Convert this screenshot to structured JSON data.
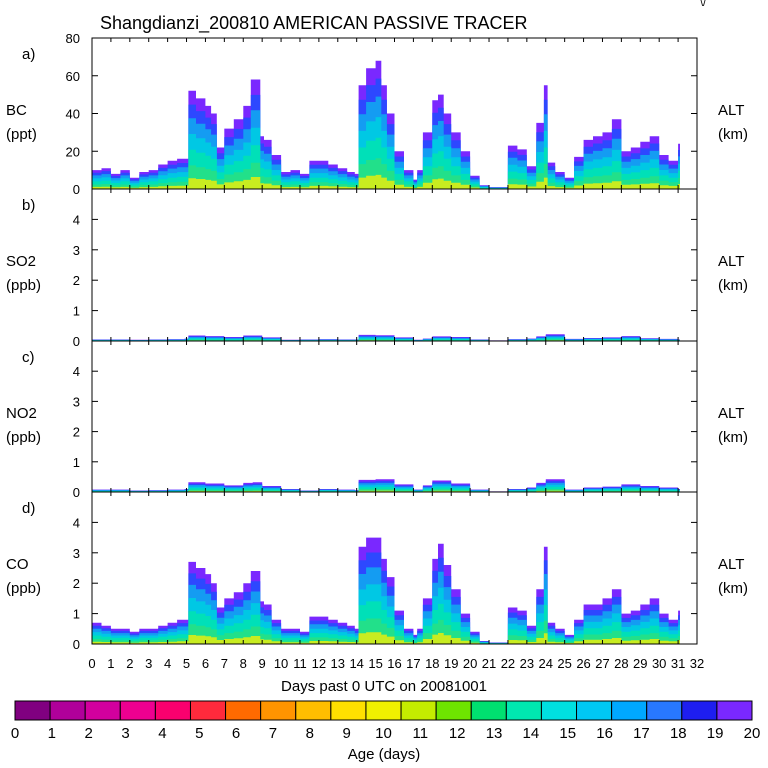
{
  "title": "Shangdianzi_200810 AMERICAN PASSIVE TRACER",
  "corner_mark": "\\/",
  "x_axis": {
    "label": "Days past 0 UTC on 20081001",
    "range": [
      0,
      32
    ],
    "ticks": [
      "0",
      "1",
      "2",
      "3",
      "4",
      "5",
      "6",
      "7",
      "8",
      "9",
      "10",
      "11",
      "12",
      "13",
      "14",
      "15",
      "16",
      "17",
      "18",
      "19",
      "20",
      "21",
      "22",
      "23",
      "24",
      "25",
      "26",
      "27",
      "28",
      "29",
      "30",
      "31",
      "32"
    ]
  },
  "right_axis": {
    "label": "ALT",
    "unit": "(km)"
  },
  "colorbar": {
    "label": "Age (days)",
    "ticks": [
      "0",
      "1",
      "2",
      "3",
      "4",
      "5",
      "6",
      "7",
      "8",
      "9",
      "10",
      "11",
      "12",
      "13",
      "14",
      "15",
      "16",
      "17",
      "18",
      "19",
      "20"
    ],
    "colors": [
      "#800080",
      "#b0009a",
      "#d2009e",
      "#ee0090",
      "#fa006e",
      "#ff2a3c",
      "#ff6a00",
      "#ff9400",
      "#ffbe00",
      "#ffe000",
      "#f0f000",
      "#c4ec00",
      "#6ee400",
      "#00e070",
      "#00e8b0",
      "#00e0e0",
      "#00c8f4",
      "#00a8ff",
      "#2878ff",
      "#1e1ef0",
      "#7a28ff"
    ]
  },
  "chart_data": [
    {
      "type": "area",
      "panel": "a)",
      "species": "BC",
      "unit": "(ppt)",
      "ylim": [
        0,
        80
      ],
      "yticks": [
        "0",
        "20",
        "40",
        "60",
        "80"
      ],
      "x": [
        0,
        0.5,
        1,
        1.5,
        2,
        2.5,
        3,
        3.5,
        4,
        4.5,
        4.9,
        5.1,
        5.5,
        6,
        6.3,
        6.6,
        7,
        7.5,
        8,
        8.4,
        8.9,
        9.1,
        9.5,
        10,
        10.5,
        11,
        11.5,
        12,
        12.5,
        13,
        13.5,
        13.9,
        14.1,
        14.5,
        15,
        15.3,
        15.6,
        16,
        16.5,
        17,
        17.2,
        17.5,
        18,
        18.3,
        18.6,
        19,
        19.5,
        20,
        20.5,
        21,
        21.5,
        22,
        22.5,
        23,
        23.5,
        23.9,
        24.1,
        24.5,
        25,
        25.5,
        26,
        26.5,
        27,
        27.5,
        28,
        28.5,
        29,
        29.5,
        30,
        30.5,
        31,
        31.1
      ],
      "values": [
        10,
        11,
        8,
        10,
        6,
        9,
        10,
        13,
        15,
        16,
        16,
        52,
        48,
        44,
        40,
        22,
        32,
        37,
        44,
        58,
        28,
        26,
        18,
        9,
        10,
        8,
        15,
        15,
        13,
        11,
        9,
        8,
        55,
        64,
        68,
        55,
        40,
        20,
        10,
        5,
        10,
        30,
        47,
        50,
        40,
        30,
        20,
        7,
        2,
        1,
        1,
        23,
        21,
        12,
        35,
        55,
        14,
        9,
        6,
        17,
        26,
        28,
        30,
        37,
        20,
        22,
        25,
        28,
        18,
        15,
        24,
        24
      ]
    },
    {
      "type": "area",
      "panel": "b)",
      "species": "SO2",
      "unit": "(ppb)",
      "ylim": [
        0,
        5
      ],
      "yticks": [
        "0",
        "1",
        "2",
        "3",
        "4"
      ],
      "x": [
        0,
        1,
        2,
        3,
        4,
        4.9,
        5.1,
        6,
        7,
        8,
        9,
        10,
        11,
        12,
        13,
        13.9,
        14.1,
        15,
        16,
        17,
        17.5,
        18,
        19,
        20,
        21,
        22,
        23,
        23.5,
        24,
        25,
        26,
        27,
        28,
        29,
        30,
        31,
        31.1
      ],
      "values": [
        0.05,
        0.05,
        0.04,
        0.05,
        0.06,
        0.08,
        0.18,
        0.16,
        0.13,
        0.18,
        0.12,
        0.04,
        0.05,
        0.06,
        0.05,
        0.05,
        0.2,
        0.19,
        0.12,
        0.04,
        0.08,
        0.15,
        0.13,
        0.05,
        0.02,
        0.06,
        0.08,
        0.15,
        0.22,
        0.07,
        0.1,
        0.12,
        0.16,
        0.09,
        0.07,
        0.05,
        0.05
      ]
    },
    {
      "type": "area",
      "panel": "c)",
      "species": "NO2",
      "unit": "(ppb)",
      "ylim": [
        0,
        5
      ],
      "yticks": [
        "0",
        "1",
        "2",
        "3",
        "4"
      ],
      "x": [
        0,
        1,
        2,
        3,
        4,
        4.9,
        5.1,
        6,
        7,
        8,
        8.5,
        9,
        10,
        11,
        12,
        13,
        13.9,
        14.1,
        15,
        16,
        17,
        17.5,
        18,
        19,
        20,
        21,
        22,
        23,
        23.5,
        24,
        25,
        26,
        27,
        28,
        29,
        30,
        31,
        31.1
      ],
      "values": [
        0.08,
        0.08,
        0.05,
        0.06,
        0.08,
        0.1,
        0.32,
        0.28,
        0.22,
        0.3,
        0.32,
        0.2,
        0.1,
        0.05,
        0.1,
        0.08,
        0.06,
        0.4,
        0.42,
        0.25,
        0.08,
        0.22,
        0.38,
        0.28,
        0.08,
        0.02,
        0.1,
        0.15,
        0.3,
        0.42,
        0.08,
        0.15,
        0.18,
        0.25,
        0.2,
        0.15,
        0.1,
        0.1
      ]
    },
    {
      "type": "area",
      "panel": "d)",
      "species": "CO",
      "unit": "(ppb)",
      "ylim": [
        0,
        5
      ],
      "yticks": [
        "0",
        "1",
        "2",
        "3",
        "4"
      ],
      "x": [
        0,
        0.5,
        1,
        1.5,
        2,
        2.5,
        3,
        3.5,
        4,
        4.5,
        4.9,
        5.1,
        5.5,
        6,
        6.3,
        6.6,
        7,
        7.5,
        8,
        8.4,
        8.9,
        9.1,
        9.5,
        10,
        10.5,
        11,
        11.5,
        12,
        12.5,
        13,
        13.5,
        13.9,
        14.1,
        14.5,
        15,
        15.3,
        15.6,
        16,
        16.5,
        17,
        17.2,
        17.5,
        18,
        18.3,
        18.6,
        19,
        19.5,
        20,
        20.5,
        21,
        21.5,
        22,
        22.5,
        23,
        23.5,
        23.9,
        24.1,
        24.5,
        25,
        25.5,
        26,
        26.5,
        27,
        27.5,
        28,
        28.5,
        29,
        29.5,
        30,
        30.5,
        31,
        31.1
      ],
      "values": [
        0.7,
        0.6,
        0.5,
        0.5,
        0.4,
        0.5,
        0.5,
        0.6,
        0.7,
        0.8,
        0.8,
        2.7,
        2.5,
        2.3,
        2.0,
        1.2,
        1.5,
        1.7,
        2.0,
        2.4,
        1.4,
        1.3,
        0.8,
        0.5,
        0.5,
        0.4,
        0.9,
        0.9,
        0.8,
        0.7,
        0.6,
        0.5,
        3.2,
        3.5,
        3.5,
        2.8,
        2.2,
        1.1,
        0.5,
        0.3,
        0.5,
        1.5,
        2.8,
        3.3,
        2.6,
        1.8,
        1.0,
        0.4,
        0.1,
        0.05,
        0.05,
        1.2,
        1.1,
        0.6,
        1.8,
        3.2,
        0.7,
        0.5,
        0.3,
        0.8,
        1.3,
        1.3,
        1.5,
        1.8,
        1.0,
        1.1,
        1.3,
        1.5,
        1.0,
        0.8,
        1.1,
        1.1
      ]
    }
  ]
}
